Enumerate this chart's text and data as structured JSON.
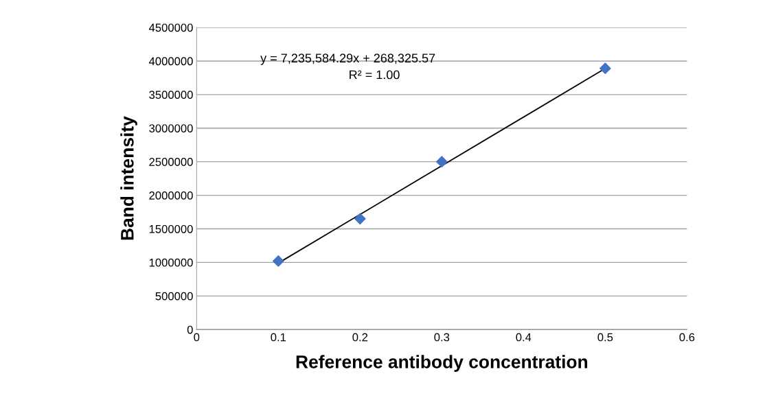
{
  "chart_data": {
    "type": "scatter",
    "xlabel": "Reference antibody concentration",
    "ylabel": "Band intensity",
    "series": [
      {
        "color": "#4472c4",
        "marker": "diamond",
        "x": [
          0.1,
          0.2,
          0.3,
          0.5
        ],
        "values": [
          1020000,
          1650000,
          2500000,
          3890000
        ]
      },
      {
        "type": "line",
        "color": "#000000",
        "marker": "none",
        "line_style": "solid",
        "x": [
          0.1,
          0.5
        ],
        "values": [
          990000,
          3890000
        ]
      }
    ],
    "annotations": [
      "y = 7,235,584.29x + 268,325.57",
      "R² = 1.00"
    ],
    "xlim": [
      0,
      0.6
    ],
    "xticks": [
      0,
      0.1,
      0.2,
      0.3,
      0.4,
      0.5,
      0.6
    ],
    "ylim": [
      0,
      4500000
    ],
    "yticks": [
      0,
      500000,
      1000000,
      1500000,
      2000000,
      2500000,
      3000000,
      3500000,
      4000000,
      4500000
    ],
    "grid": "y",
    "legend": false
  }
}
